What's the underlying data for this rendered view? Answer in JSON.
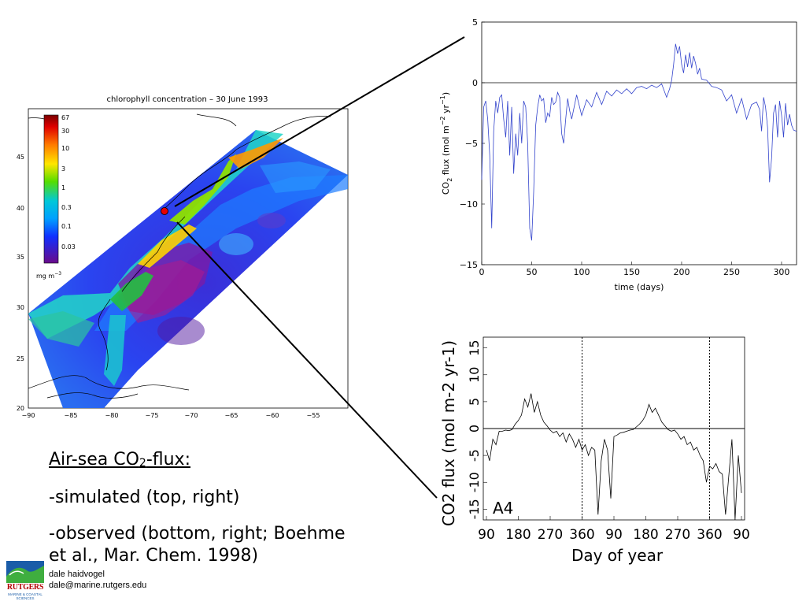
{
  "map": {
    "title": "chlorophyll concentration  – 30 June 1993",
    "x_ticks": [
      "−90",
      "−85",
      "−80",
      "−75",
      "−70",
      "−65",
      "−60",
      "−55"
    ],
    "y_ticks": [
      "20",
      "25",
      "30",
      "35",
      "40",
      "45"
    ],
    "colorbar_ticks": [
      "67",
      "30",
      "10",
      "3",
      "1",
      "0.3",
      "0.1",
      "0.03"
    ],
    "colorbar_unit": "mg m",
    "colorbar_unit_exp": "−3"
  },
  "chart_data": [
    {
      "id": "simulated",
      "type": "line",
      "xlabel": "time (days)",
      "ylabel_main": "CO",
      "ylabel_sub": "2",
      "ylabel_rest": " flux (mol m",
      "ylabel_exp1": "−2",
      "ylabel_mid": " yr",
      "ylabel_exp2": "−1",
      "ylabel_close": ")",
      "xlim": [
        0,
        315
      ],
      "ylim": [
        -15,
        5
      ],
      "x_ticks": [
        0,
        50,
        100,
        150,
        200,
        250,
        300
      ],
      "y_ticks": [
        5,
        0,
        -5,
        -10,
        -15
      ],
      "zero_line": true,
      "series": [
        {
          "color": "#3344cc",
          "x": [
            0,
            2,
            4,
            6,
            8,
            10,
            12,
            14,
            16,
            18,
            20,
            22,
            24,
            26,
            28,
            30,
            32,
            34,
            36,
            38,
            40,
            42,
            44,
            46,
            48,
            50,
            52,
            54,
            56,
            58,
            60,
            62,
            64,
            66,
            68,
            70,
            72,
            74,
            76,
            78,
            80,
            82,
            84,
            86,
            88,
            90,
            95,
            100,
            105,
            110,
            115,
            120,
            125,
            130,
            135,
            140,
            145,
            150,
            155,
            160,
            165,
            170,
            175,
            180,
            185,
            188,
            190,
            192,
            194,
            196,
            198,
            200,
            202,
            204,
            206,
            208,
            210,
            212,
            214,
            216,
            218,
            220,
            225,
            230,
            235,
            240,
            245,
            250,
            255,
            260,
            265,
            270,
            275,
            278,
            280,
            282,
            284,
            286,
            288,
            290,
            292,
            294,
            296,
            298,
            300,
            302,
            304,
            306,
            308,
            310,
            312,
            315
          ],
          "y": [
            -8,
            -2,
            -1.5,
            -3,
            -6,
            -12,
            -4,
            -1.5,
            -2.5,
            -1.2,
            -1,
            -3,
            -4.5,
            -1.5,
            -6,
            -2,
            -7.5,
            -4.2,
            -6,
            -2.5,
            -5,
            -1.5,
            -2,
            -5,
            -12,
            -13,
            -9,
            -3.5,
            -2,
            -1,
            -1.5,
            -1.3,
            -3.3,
            -2.5,
            -2.8,
            -1.2,
            -1.8,
            -1.6,
            -0.8,
            -1.2,
            -4.2,
            -5,
            -3,
            -1.3,
            -2.3,
            -3,
            -1,
            -2.7,
            -1.4,
            -2,
            -0.8,
            -1.8,
            -0.7,
            -1.1,
            -0.6,
            -0.9,
            -0.5,
            -0.9,
            -0.4,
            -0.3,
            -0.5,
            -0.2,
            -0.4,
            -0.1,
            -1.2,
            -0.5,
            0.2,
            1.5,
            3.2,
            2.4,
            3,
            1.5,
            0.8,
            2.3,
            1.3,
            2.5,
            1.2,
            2.2,
            1.6,
            0.7,
            1.2,
            0.3,
            0.2,
            -0.3,
            -0.4,
            -0.6,
            -1.5,
            -1,
            -2.5,
            -1.3,
            -3,
            -1.8,
            -1.6,
            -2.2,
            -4,
            -1.2,
            -2,
            -3.7,
            -8.2,
            -6.2,
            -2.5,
            -1.8,
            -4.5,
            -1.5,
            -2.7,
            -4.5,
            -1.7,
            -3.5,
            -2.6,
            -3.5,
            -3.9,
            -4
          ]
        }
      ]
    },
    {
      "id": "observed",
      "type": "line",
      "xlabel": "Day of year",
      "ylabel": "CO2 flux (mol m-2 yr-1)",
      "panel_label": "A4",
      "ylim": [
        -17,
        17
      ],
      "x_ticks": [
        "90",
        "180",
        "270",
        "360",
        "90",
        "180",
        "270",
        "360",
        "90"
      ],
      "y_ticks": [
        "15",
        "10",
        "5",
        "0",
        "-5",
        "-10",
        "-15"
      ],
      "y_tick_values": [
        15,
        10,
        5,
        0,
        -5,
        -10,
        -15
      ],
      "dashed_lines_at_tick": [
        3,
        7
      ],
      "zero_line": true,
      "series": [
        {
          "color": "#000000",
          "x": [
            0,
            0.1,
            0.2,
            0.3,
            0.4,
            0.5,
            0.6,
            0.7,
            0.8,
            0.9,
            1.0,
            1.1,
            1.2,
            1.3,
            1.4,
            1.5,
            1.6,
            1.7,
            1.8,
            1.9,
            2.0,
            2.1,
            2.2,
            2.3,
            2.4,
            2.5,
            2.6,
            2.7,
            2.8,
            2.9,
            3.0,
            3.1,
            3.2,
            3.3,
            3.4,
            3.5,
            3.6,
            3.7,
            3.8,
            3.9,
            4.0,
            4.1,
            4.2,
            4.3,
            4.4,
            4.5,
            4.6,
            4.7,
            4.8,
            4.9,
            5.0,
            5.1,
            5.2,
            5.3,
            5.4,
            5.5,
            5.6,
            5.7,
            5.8,
            5.9,
            6.0,
            6.1,
            6.2,
            6.3,
            6.4,
            6.5,
            6.6,
            6.7,
            6.8,
            6.9,
            7.0,
            7.1,
            7.2,
            7.3,
            7.4,
            7.5,
            7.6,
            7.7,
            7.8,
            7.9,
            8.0
          ],
          "y": [
            -4,
            -6,
            -2,
            -3,
            -0.5,
            -0.5,
            -0.3,
            -0.4,
            -0.2,
            0.8,
            1.5,
            2.5,
            5.5,
            4,
            6.5,
            3,
            5,
            2.5,
            1.2,
            0.5,
            -0.3,
            -0.8,
            -0.5,
            -1.5,
            -0.8,
            -2.5,
            -1,
            -2,
            -3.5,
            -2,
            -4,
            -3,
            -5,
            -3.5,
            -4,
            -16,
            -6,
            -2,
            -4,
            -13,
            -1.5,
            -1.2,
            -0.8,
            -0.7,
            -0.5,
            -0.3,
            -0.2,
            0.3,
            0.8,
            1.5,
            2.5,
            4.5,
            3,
            3.8,
            2.5,
            1.2,
            0.5,
            -0.2,
            -0.5,
            -0.3,
            -1,
            -2,
            -1.5,
            -3,
            -2.5,
            -4,
            -3.5,
            -5,
            -6,
            -10,
            -7,
            -7.5,
            -6.5,
            -8,
            -8.5,
            -16,
            -9,
            -2,
            -17,
            -5,
            -12
          ]
        }
      ]
    }
  ],
  "captions": {
    "title_main": "Air-sea CO",
    "title_sub": "2",
    "title_end": "-flux:",
    "simulated": "-simulated (top, right)",
    "observed": "-observed (bottom, right; Boehme et al., Mar. Chem. 1998)"
  },
  "footer": {
    "logo_text": "RUTGERS",
    "logo_sub": "MARINE & COASTAL SCIENCES",
    "author_name": "dale haidvogel",
    "author_email": "dale@marine.rutgers.edu"
  }
}
